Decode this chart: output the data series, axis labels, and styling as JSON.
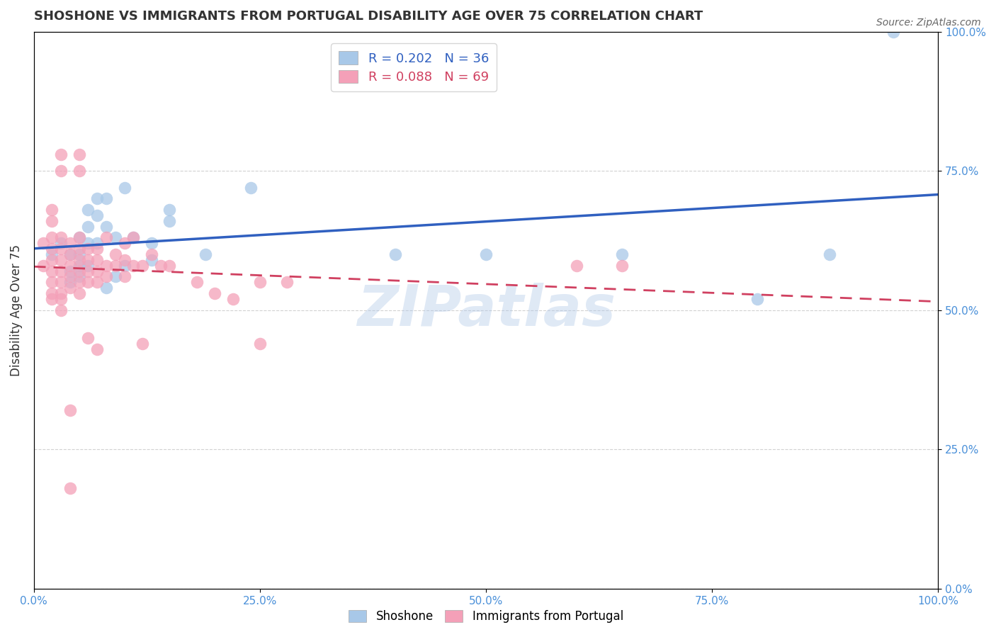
{
  "title": "SHOSHONE VS IMMIGRANTS FROM PORTUGAL DISABILITY AGE OVER 75 CORRELATION CHART",
  "source": "Source: ZipAtlas.com",
  "ylabel": "Disability Age Over 75",
  "watermark": "ZIPatlas",
  "xlim": [
    0.0,
    1.0
  ],
  "ylim": [
    0.0,
    1.0
  ],
  "xticks": [
    0.0,
    0.25,
    0.5,
    0.75,
    1.0
  ],
  "yticks": [
    0.0,
    0.25,
    0.5,
    0.75,
    1.0
  ],
  "shoshone_color": "#a8c8e8",
  "portugal_color": "#f4a0b8",
  "shoshone_line_color": "#3060c0",
  "portugal_line_color": "#d04060",
  "shoshone_N": 36,
  "portugal_N": 69,
  "shoshone_R": 0.202,
  "portugal_R": 0.088,
  "shoshone_points": [
    [
      0.02,
      0.6
    ],
    [
      0.03,
      0.62
    ],
    [
      0.04,
      0.6
    ],
    [
      0.04,
      0.57
    ],
    [
      0.04,
      0.55
    ],
    [
      0.05,
      0.63
    ],
    [
      0.05,
      0.6
    ],
    [
      0.05,
      0.58
    ],
    [
      0.05,
      0.56
    ],
    [
      0.06,
      0.68
    ],
    [
      0.06,
      0.65
    ],
    [
      0.06,
      0.62
    ],
    [
      0.06,
      0.58
    ],
    [
      0.07,
      0.7
    ],
    [
      0.07,
      0.67
    ],
    [
      0.07,
      0.62
    ],
    [
      0.08,
      0.7
    ],
    [
      0.08,
      0.65
    ],
    [
      0.09,
      0.63
    ],
    [
      0.1,
      0.72
    ],
    [
      0.11,
      0.63
    ],
    [
      0.13,
      0.62
    ],
    [
      0.15,
      0.68
    ],
    [
      0.15,
      0.66
    ],
    [
      0.19,
      0.6
    ],
    [
      0.24,
      0.72
    ],
    [
      0.13,
      0.59
    ],
    [
      0.08,
      0.54
    ],
    [
      0.09,
      0.56
    ],
    [
      0.1,
      0.58
    ],
    [
      0.4,
      0.6
    ],
    [
      0.5,
      0.6
    ],
    [
      0.65,
      0.6
    ],
    [
      0.8,
      0.52
    ],
    [
      0.88,
      0.6
    ],
    [
      0.95,
      1.0
    ]
  ],
  "portugal_points": [
    [
      0.01,
      0.62
    ],
    [
      0.01,
      0.58
    ],
    [
      0.02,
      0.68
    ],
    [
      0.02,
      0.66
    ],
    [
      0.02,
      0.63
    ],
    [
      0.02,
      0.61
    ],
    [
      0.02,
      0.59
    ],
    [
      0.02,
      0.57
    ],
    [
      0.02,
      0.55
    ],
    [
      0.02,
      0.53
    ],
    [
      0.02,
      0.52
    ],
    [
      0.03,
      0.78
    ],
    [
      0.03,
      0.75
    ],
    [
      0.03,
      0.63
    ],
    [
      0.03,
      0.61
    ],
    [
      0.03,
      0.59
    ],
    [
      0.03,
      0.57
    ],
    [
      0.03,
      0.55
    ],
    [
      0.03,
      0.53
    ],
    [
      0.03,
      0.52
    ],
    [
      0.03,
      0.5
    ],
    [
      0.04,
      0.62
    ],
    [
      0.04,
      0.6
    ],
    [
      0.04,
      0.58
    ],
    [
      0.04,
      0.56
    ],
    [
      0.04,
      0.54
    ],
    [
      0.05,
      0.78
    ],
    [
      0.05,
      0.75
    ],
    [
      0.05,
      0.63
    ],
    [
      0.05,
      0.61
    ],
    [
      0.05,
      0.59
    ],
    [
      0.05,
      0.57
    ],
    [
      0.05,
      0.55
    ],
    [
      0.05,
      0.53
    ],
    [
      0.06,
      0.61
    ],
    [
      0.06,
      0.59
    ],
    [
      0.06,
      0.57
    ],
    [
      0.06,
      0.55
    ],
    [
      0.07,
      0.61
    ],
    [
      0.07,
      0.59
    ],
    [
      0.07,
      0.57
    ],
    [
      0.07,
      0.55
    ],
    [
      0.08,
      0.63
    ],
    [
      0.08,
      0.58
    ],
    [
      0.08,
      0.56
    ],
    [
      0.09,
      0.6
    ],
    [
      0.09,
      0.58
    ],
    [
      0.1,
      0.62
    ],
    [
      0.1,
      0.59
    ],
    [
      0.1,
      0.56
    ],
    [
      0.11,
      0.63
    ],
    [
      0.11,
      0.58
    ],
    [
      0.12,
      0.58
    ],
    [
      0.13,
      0.6
    ],
    [
      0.14,
      0.58
    ],
    [
      0.15,
      0.58
    ],
    [
      0.18,
      0.55
    ],
    [
      0.2,
      0.53
    ],
    [
      0.22,
      0.52
    ],
    [
      0.25,
      0.55
    ],
    [
      0.28,
      0.55
    ],
    [
      0.06,
      0.45
    ],
    [
      0.07,
      0.43
    ],
    [
      0.04,
      0.32
    ],
    [
      0.04,
      0.18
    ],
    [
      0.12,
      0.44
    ],
    [
      0.25,
      0.44
    ],
    [
      0.6,
      0.58
    ],
    [
      0.65,
      0.58
    ]
  ],
  "grid_color": "#cccccc",
  "background_color": "#ffffff",
  "title_fontsize": 13,
  "axis_label_fontsize": 12,
  "tick_fontsize": 11,
  "legend_fontsize": 13
}
